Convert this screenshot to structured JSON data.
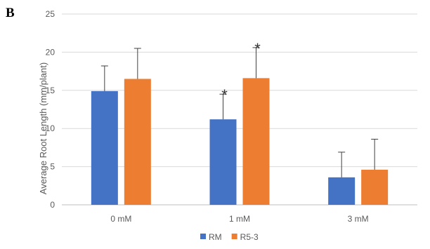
{
  "panel_label": "B",
  "chart_data": {
    "type": "bar",
    "categories": [
      "0 mM",
      "1 mM",
      "3 mM"
    ],
    "series": [
      {
        "name": "RM",
        "color": "#4472C4",
        "values": [
          14.9,
          11.2,
          3.6
        ],
        "errors": [
          3.3,
          3.3,
          3.3
        ]
      },
      {
        "name": "R5-3",
        "color": "#ED7D31",
        "values": [
          16.5,
          16.6,
          4.6
        ],
        "errors": [
          4.0,
          4.0,
          4.0
        ]
      }
    ],
    "significance": [
      {
        "category": 1,
        "series": 0,
        "label": "*"
      },
      {
        "category": 1,
        "series": 1,
        "label": "*"
      }
    ],
    "title": "",
    "xlabel": "",
    "ylabel": "Average Root Length (mm/plant)",
    "ylim": [
      0,
      25
    ],
    "yticks": [
      "0",
      "5",
      "10",
      "15",
      "20",
      "25"
    ],
    "grid": true,
    "legend_position": "bottom"
  }
}
